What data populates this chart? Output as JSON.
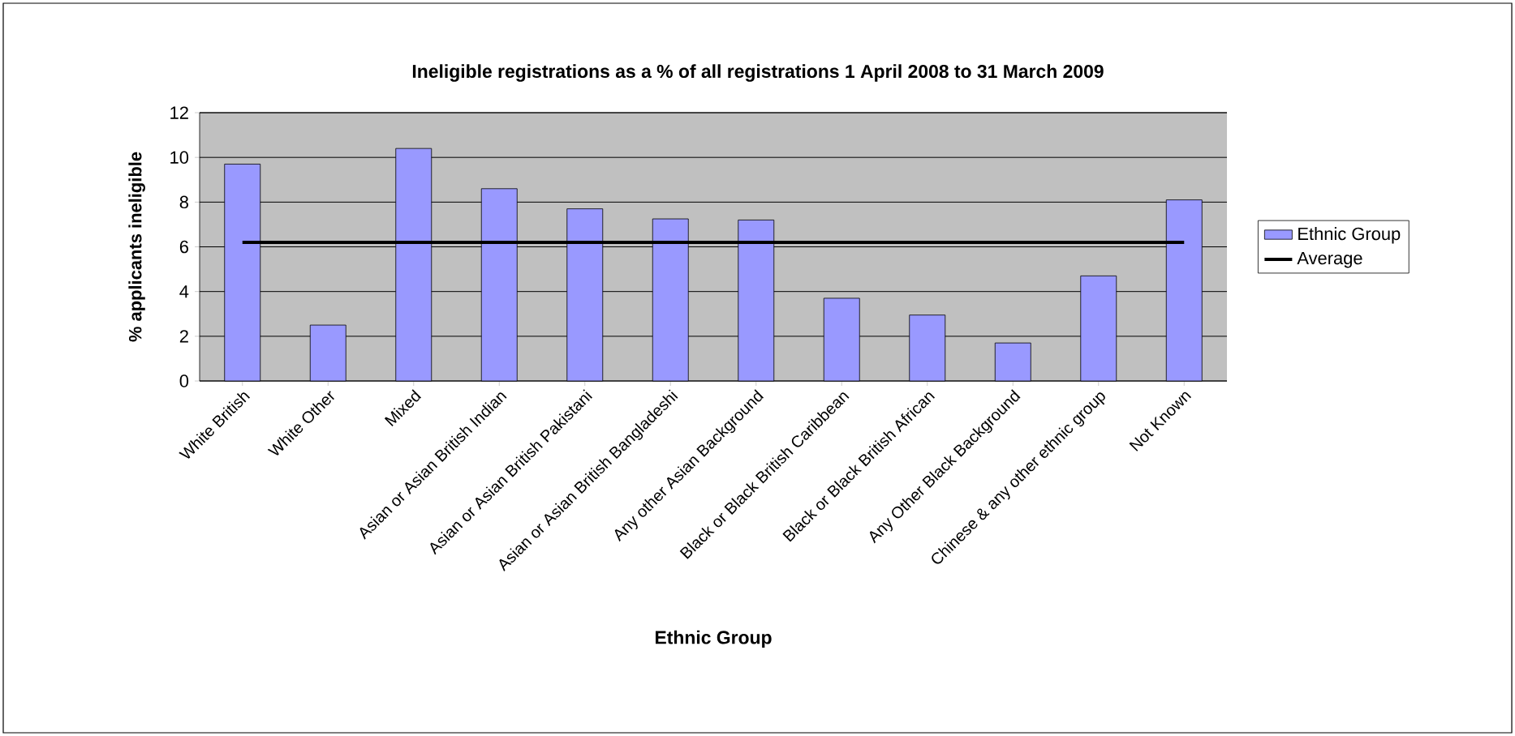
{
  "chart_data": {
    "type": "bar",
    "title": "Ineligible registrations as a % of all registrations 1 April 2008 to 31 March 2009",
    "xlabel": "Ethnic Group",
    "ylabel": "% applicants ineligible",
    "categories": [
      "White British",
      "White Other",
      "Mixed",
      "Asian or Asian British Indian",
      "Asian or Asian British Pakistani",
      "Asian or Asian British Bangladeshi",
      "Any other Asian Background",
      "Black or Black British Caribbean",
      "Black or Black British African",
      "Any Other Black Background",
      "Chinese & any other ethnic group",
      "Not Known"
    ],
    "series": [
      {
        "name": "Ethnic Group",
        "color": "#9999ff",
        "values": [
          9.7,
          2.5,
          10.4,
          8.6,
          7.7,
          7.25,
          7.2,
          3.7,
          2.95,
          1.7,
          4.7,
          8.1
        ]
      }
    ],
    "ref_lines": [
      {
        "axis": "y",
        "value": 6.2,
        "label": "Average",
        "color": "#000000",
        "line_style": "solid"
      }
    ],
    "ylim": [
      0,
      12
    ],
    "yticks": [
      0,
      2,
      4,
      6,
      8,
      10,
      12
    ],
    "grid": "y",
    "legend": "right"
  }
}
